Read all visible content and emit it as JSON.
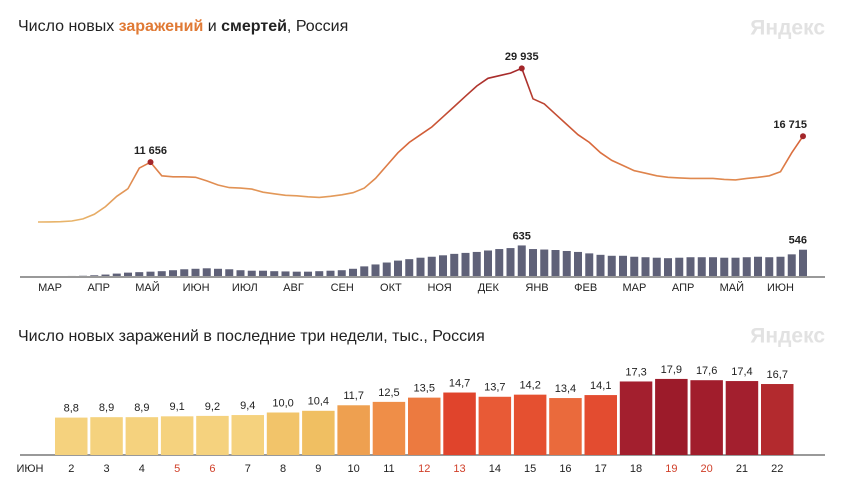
{
  "chart_data": [
    {
      "type": "combo",
      "title_start": "Число новых ",
      "title_joiner": " и ",
      "title_end": ", Россия",
      "watermark": "Яндекс",
      "months": [
        "МАР",
        "АПР",
        "МАЙ",
        "ИЮН",
        "ИЮЛ",
        "АВГ",
        "СЕН",
        "ОКТ",
        "НОЯ",
        "ДЕК",
        "ЯНВ",
        "ФЕВ",
        "МАР",
        "АПР",
        "МАЙ",
        "ИЮН"
      ],
      "ylim": [
        0,
        30000
      ],
      "y2lim": [
        0,
        3200
      ],
      "series": [
        {
          "name": "заражений",
          "color": "#e8b46a",
          "color_mid": "#d9673a",
          "color_high": "#a3262a",
          "marker_color": "#a3262a",
          "values": [
            3,
            20,
            60,
            200,
            600,
            1500,
            3000,
            5000,
            6500,
            10500,
            11656,
            9000,
            8800,
            8800,
            8700,
            8000,
            7200,
            6700,
            6600,
            6400,
            5800,
            5500,
            5200,
            5100,
            4900,
            4800,
            5000,
            5300,
            5700,
            6600,
            8500,
            11000,
            13500,
            15500,
            17000,
            18500,
            20500,
            22500,
            24500,
            26500,
            28000,
            28500,
            29000,
            29935,
            24000,
            23000,
            21000,
            19000,
            17000,
            15500,
            13500,
            12000,
            11000,
            10000,
            9500,
            9000,
            8700,
            8600,
            8500,
            8500,
            8500,
            8300,
            8200,
            8500,
            8700,
            9000,
            9800,
            13500,
            16715
          ],
          "value_labels": [
            null,
            null,
            null,
            null,
            null,
            null,
            null,
            null,
            null,
            null,
            "11 656",
            null,
            null,
            null,
            null,
            null,
            null,
            null,
            null,
            null,
            null,
            null,
            null,
            null,
            null,
            null,
            null,
            null,
            null,
            null,
            null,
            null,
            null,
            null,
            null,
            null,
            null,
            null,
            null,
            null,
            null,
            null,
            null,
            "29 935",
            null,
            null,
            null,
            null,
            null,
            null,
            null,
            null,
            null,
            null,
            null,
            null,
            null,
            null,
            null,
            null,
            null,
            null,
            null,
            null,
            null,
            null,
            null,
            null,
            "16 715"
          ]
        },
        {
          "name": "смертей",
          "color": "#5f6178",
          "axis": "y2",
          "values": [
            0,
            0,
            0,
            1,
            5,
            15,
            30,
            50,
            70,
            80,
            90,
            100,
            120,
            140,
            150,
            160,
            150,
            140,
            120,
            110,
            110,
            100,
            95,
            90,
            90,
            100,
            110,
            120,
            150,
            200,
            240,
            280,
            320,
            350,
            380,
            400,
            430,
            460,
            480,
            500,
            530,
            560,
            580,
            635,
            560,
            550,
            540,
            520,
            500,
            470,
            440,
            420,
            420,
            400,
            390,
            380,
            370,
            380,
            390,
            390,
            390,
            380,
            380,
            390,
            400,
            390,
            400,
            450,
            546
          ],
          "value_labels": [
            null,
            null,
            null,
            null,
            null,
            null,
            null,
            null,
            null,
            null,
            null,
            null,
            null,
            null,
            null,
            null,
            null,
            null,
            null,
            null,
            null,
            null,
            null,
            null,
            null,
            null,
            null,
            null,
            null,
            null,
            null,
            null,
            null,
            null,
            null,
            null,
            null,
            null,
            null,
            null,
            null,
            null,
            null,
            "635",
            null,
            null,
            null,
            null,
            null,
            null,
            null,
            null,
            null,
            null,
            null,
            null,
            null,
            null,
            null,
            null,
            null,
            null,
            null,
            null,
            null,
            null,
            null,
            null,
            "546"
          ]
        }
      ]
    },
    {
      "type": "bar",
      "title": "Число новых заражений в последние три недели, тыс., Россия",
      "watermark": "Яндекс",
      "axis_label": "ИЮН",
      "ylim": [
        0,
        18
      ],
      "categories": [
        "2",
        "3",
        "4",
        "5",
        "6",
        "7",
        "8",
        "9",
        "10",
        "11",
        "12",
        "13",
        "14",
        "15",
        "16",
        "17",
        "18",
        "19",
        "20",
        "21",
        "22"
      ],
      "category_colors": [
        "#222",
        "#222",
        "#222",
        "#d0402a",
        "#d0402a",
        "#222",
        "#222",
        "#222",
        "#222",
        "#222",
        "#d0402a",
        "#d0402a",
        "#222",
        "#222",
        "#222",
        "#222",
        "#222",
        "#d0402a",
        "#d0402a",
        "#222",
        "#222"
      ],
      "values": [
        8.8,
        8.9,
        8.9,
        9.1,
        9.2,
        9.4,
        10.0,
        10.4,
        11.7,
        12.5,
        13.5,
        14.7,
        13.7,
        14.2,
        13.4,
        14.1,
        17.3,
        17.9,
        17.6,
        17.4,
        16.7
      ],
      "value_labels": [
        "8,8",
        "8,9",
        "8,9",
        "9,1",
        "9,2",
        "9,4",
        "10,0",
        "10,4",
        "11,7",
        "12,5",
        "13,5",
        "14,7",
        "13,7",
        "14,2",
        "13,4",
        "14,1",
        "17,3",
        "17,9",
        "17,6",
        "17,4",
        "16,7"
      ],
      "colors": [
        "#f5d27e",
        "#f5d27e",
        "#f5d27e",
        "#f5d27e",
        "#f5d27e",
        "#f5d27e",
        "#f2c46a",
        "#f0bf62",
        "#eea050",
        "#ef8e48",
        "#ec7a40",
        "#e0442c",
        "#e85a36",
        "#e55030",
        "#ea6a3c",
        "#e34c30",
        "#a31f2e",
        "#9c1b2a",
        "#a11d2c",
        "#a31f2e",
        "#b32a2e"
      ]
    }
  ]
}
